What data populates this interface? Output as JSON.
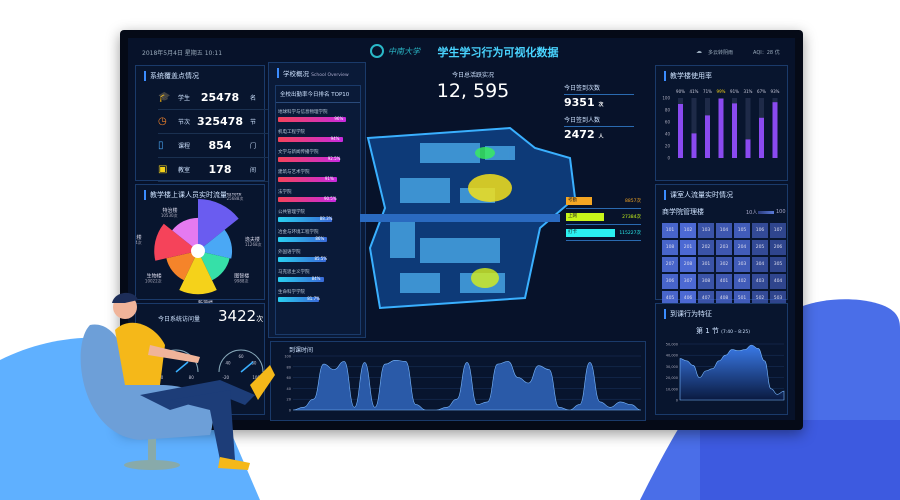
{
  "header": {
    "datetime": "2018年5月4日 星期五 10:11",
    "logo_text": "中南大学",
    "title": "学生学习行为可视化数据",
    "weather": "多云转阴雨",
    "aqi": "AQI：28 优"
  },
  "coverage": {
    "title": "系统覆盖点情况",
    "items": [
      {
        "icon": "graduation-cap-icon",
        "label": "学生",
        "value": "25478",
        "unit": "名"
      },
      {
        "icon": "clock-icon",
        "label": "节次",
        "value": "325478",
        "unit": "节"
      },
      {
        "icon": "book-icon",
        "label": "课程",
        "value": "854",
        "unit": "门"
      },
      {
        "icon": "classroom-icon",
        "label": "教室",
        "value": "178",
        "unit": "间"
      }
    ]
  },
  "flow": {
    "title": "教学楼上课人员实时流量",
    "slices": [
      {
        "name": "植物楼",
        "value": "25688次",
        "v": 25688,
        "color": "#6a5cf0"
      },
      {
        "name": "逸夫楼",
        "value": "11268次",
        "v": 11268,
        "color": "#4aa8f5"
      },
      {
        "name": "图智楼",
        "value": "9988次",
        "v": 9988,
        "color": "#36e0a8"
      },
      {
        "name": "新源楼",
        "value": "18666次",
        "v": 18666,
        "color": "#f5d21a"
      },
      {
        "name": "生物楼",
        "value": "10022次",
        "v": 10022,
        "color": "#f5842a"
      },
      {
        "name": "升华楼",
        "value": "19084次",
        "v": 19084,
        "color": "#f5435a"
      },
      {
        "name": "特治楼",
        "value": "10530次",
        "v": 10530,
        "color": "#e57af0"
      }
    ]
  },
  "visits": {
    "title": "今日系统访问量",
    "value": "3422",
    "unit": "次",
    "gauges": [
      {
        "ticks": [
          "40",
          "60",
          "80"
        ]
      },
      {
        "ticks": [
          "-20",
          "40",
          "60",
          "80",
          "100"
        ]
      }
    ]
  },
  "overview": {
    "title": "学校概况",
    "subtitle": "School Overview",
    "top10_title": "全校出勤率今日排名 TOP10",
    "items": [
      {
        "name": "地球科学与信息物理学院",
        "pct": "96%",
        "v": 96
      },
      {
        "name": "机电工程学院",
        "pct": "94%",
        "v": 94
      },
      {
        "name": "文学与新闻传播学院",
        "pct": "92.5%",
        "v": 92.5
      },
      {
        "name": "建筑与艺术学院",
        "pct": "91%",
        "v": 91
      },
      {
        "name": "法学院",
        "pct": "90.5%",
        "v": 90.5
      },
      {
        "name": "公共管理学院",
        "pct": "88.3%",
        "v": 88.3
      },
      {
        "name": "冶金与环境工程学院",
        "pct": "86%",
        "v": 86
      },
      {
        "name": "外国语学院",
        "pct": "85.5%",
        "v": 85.5
      },
      {
        "name": "马克思主义学院",
        "pct": "84%",
        "v": 84
      },
      {
        "name": "生命科学学院",
        "pct": "81.7%",
        "v": 81.7
      }
    ]
  },
  "active": {
    "label": "今日总活跃实况",
    "value": "12, 595",
    "signin_count_label": "今日签到次数",
    "signin_count": "9351",
    "signin_count_unit": "次",
    "signin_people_label": "今日签到人数",
    "signin_people": "2472",
    "signin_people_unit": "人"
  },
  "map_legend": [
    {
      "label": "考勤",
      "value": "8857次",
      "color": "#f5a623",
      "frac": 0.35
    },
    {
      "label": "上网",
      "value": "27384次",
      "color": "#c8f51a",
      "frac": 0.5
    },
    {
      "label": "打卡",
      "value": "115227次",
      "color": "#2af0f0",
      "frac": 0.65
    }
  ],
  "usage": {
    "title": "教学楼使用率",
    "values": [
      90,
      41,
      71,
      99,
      91,
      31,
      67,
      93
    ],
    "labels": [
      "90%",
      "41%",
      "71%",
      "99%",
      "91%",
      "31%",
      "67%",
      "93%"
    ],
    "yticks": [
      "0",
      "20",
      "40",
      "60",
      "80",
      "100"
    ]
  },
  "rooms": {
    "title": "课室人流量实时情况",
    "building": "商学院管理楼",
    "legend_min": "10人",
    "legend_max": "100",
    "cells": [
      "101",
      "102",
      "103",
      "104",
      "105",
      "106",
      "107",
      "108",
      "201",
      "202",
      "203",
      "204",
      "205",
      "206",
      "207",
      "208",
      "301",
      "302",
      "303",
      "304",
      "305",
      "306",
      "307",
      "308",
      "401",
      "402",
      "403",
      "404",
      "405",
      "406",
      "407",
      "408",
      "501",
      "502",
      "503"
    ]
  },
  "arrival": {
    "title": "到课时间",
    "values": [
      0,
      5,
      20,
      85,
      75,
      90,
      5,
      88,
      5,
      85,
      92,
      90,
      10,
      0,
      0,
      5,
      20,
      88,
      10,
      15,
      85,
      90,
      60,
      50,
      82,
      75,
      5,
      0,
      10,
      88,
      15,
      5,
      15,
      10,
      0
    ],
    "yticks": [
      "0",
      "20",
      "40",
      "60",
      "80",
      "100"
    ]
  },
  "behavior": {
    "title": "到课行为特征",
    "period": "第 1 节",
    "time": "(7:40 – 8:25)",
    "values": [
      37,
      35,
      31,
      20,
      26,
      28,
      35,
      40,
      45,
      44,
      45,
      49,
      46,
      35,
      10,
      5,
      8
    ],
    "yticks": [
      "0",
      "10,000",
      "20,000",
      "30,000",
      "40,000",
      "50,000"
    ]
  },
  "colors": {
    "accent": "#3b8cff",
    "bg": "#07122a",
    "title": "#49d4ff"
  }
}
